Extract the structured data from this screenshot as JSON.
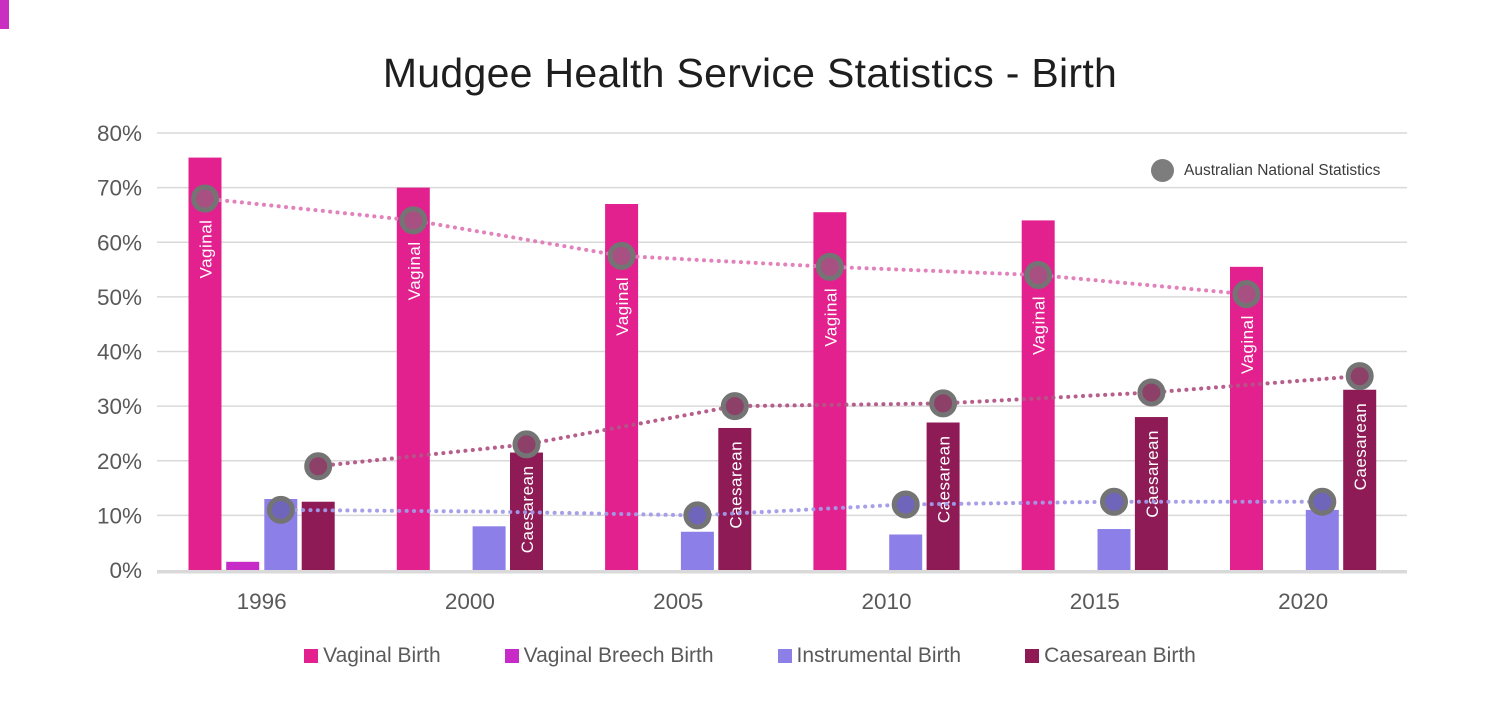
{
  "title": "Mudgee Health Service Statistics - Birth",
  "corner_decoration_color": "#C92FC0",
  "national_legend": {
    "label": "Australian National Statistics",
    "marker_color": "#7d7d7d"
  },
  "legend": [
    {
      "label": "Vaginal Birth",
      "color": "#E2218F"
    },
    {
      "label": "Vaginal Breech Birth",
      "color": "#C72BC7"
    },
    {
      "label": "Instrumental Birth",
      "color": "#8C80E8"
    },
    {
      "label": "Caesarean Birth",
      "color": "#8E1A56"
    }
  ],
  "chart_data": {
    "type": "bar",
    "title": "Mudgee Health Service Statistics - Birth",
    "categories": [
      "1996",
      "2000",
      "2005",
      "2010",
      "2015",
      "2020"
    ],
    "xlabel": "",
    "ylabel": "",
    "ylim": [
      0,
      80
    ],
    "y_tick_labels": [
      "0%",
      "10%",
      "20%",
      "30%",
      "40%",
      "50%",
      "60%",
      "70%",
      "80%"
    ],
    "grid": true,
    "legend_position": "bottom",
    "bar_series": [
      {
        "name": "Vaginal Birth",
        "color": "#E2218F",
        "bar_label": "Vaginal",
        "values": [
          75.5,
          70,
          67,
          65.5,
          64,
          55.5
        ]
      },
      {
        "name": "Vaginal Breech Birth",
        "color": "#C72BC7",
        "bar_label": null,
        "values": [
          1.5,
          null,
          null,
          null,
          null,
          null
        ]
      },
      {
        "name": "Instrumental Birth",
        "color": "#8C80E8",
        "bar_label": null,
        "values": [
          13,
          8,
          7,
          6.5,
          7.5,
          11
        ]
      },
      {
        "name": "Caesarean Birth",
        "color": "#8E1A56",
        "bar_label": "Caesarean",
        "values": [
          12.5,
          21.5,
          26,
          27,
          28,
          33
        ]
      }
    ],
    "line_series": [
      {
        "name": "Australian National Statistics - Vaginal",
        "aligns_with": "Vaginal Birth",
        "slot": 0,
        "line_color": "#E07BB8",
        "marker_fill": "#A85082",
        "values": [
          68,
          64,
          57.5,
          55.5,
          54,
          50.5
        ],
        "show_marker": [
          true,
          true,
          true,
          true,
          true,
          true
        ]
      },
      {
        "name": "Australian National Statistics - Instrumental",
        "aligns_with": "Instrumental Birth",
        "slot": 2,
        "line_color": "#A29BE8",
        "marker_fill": "#6F66BC",
        "values": [
          11,
          10.7,
          10,
          12,
          12.5,
          12.5
        ],
        "show_marker": [
          true,
          false,
          true,
          true,
          true,
          true
        ]
      },
      {
        "name": "Australian National Statistics - Caesarean",
        "aligns_with": "Caesarean Birth",
        "slot": 3,
        "line_color": "#B25687",
        "marker_fill": "#8E4168",
        "values": [
          19,
          23,
          30,
          30.5,
          32.5,
          35.5
        ],
        "show_marker": [
          true,
          true,
          true,
          true,
          true,
          true
        ]
      }
    ],
    "national_marker_ring_color": "#747474"
  }
}
